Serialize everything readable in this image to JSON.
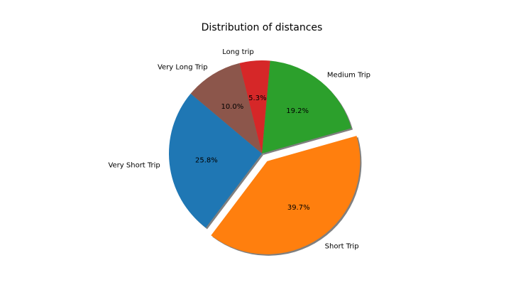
{
  "chart_data": {
    "type": "pie",
    "title": "Distribution of distances",
    "slices": [
      {
        "label": "Very Short Trip",
        "value": 25.8,
        "pct_label": "25.8%",
        "color": "#1f77b4",
        "exploded": false
      },
      {
        "label": "Short Trip",
        "value": 39.7,
        "pct_label": "39.7%",
        "color": "#ff7f0e",
        "exploded": true
      },
      {
        "label": "Medium Trip",
        "value": 19.2,
        "pct_label": "19.2%",
        "color": "#2ca02c",
        "exploded": false
      },
      {
        "label": "Long trip",
        "value": 5.3,
        "pct_label": "5.3%",
        "color": "#d62728",
        "exploded": false
      },
      {
        "label": "Very Long Trip",
        "value": 10.0,
        "pct_label": "10.0%",
        "color": "#8c564b",
        "exploded": false
      }
    ],
    "shadow": true,
    "legend": false
  }
}
